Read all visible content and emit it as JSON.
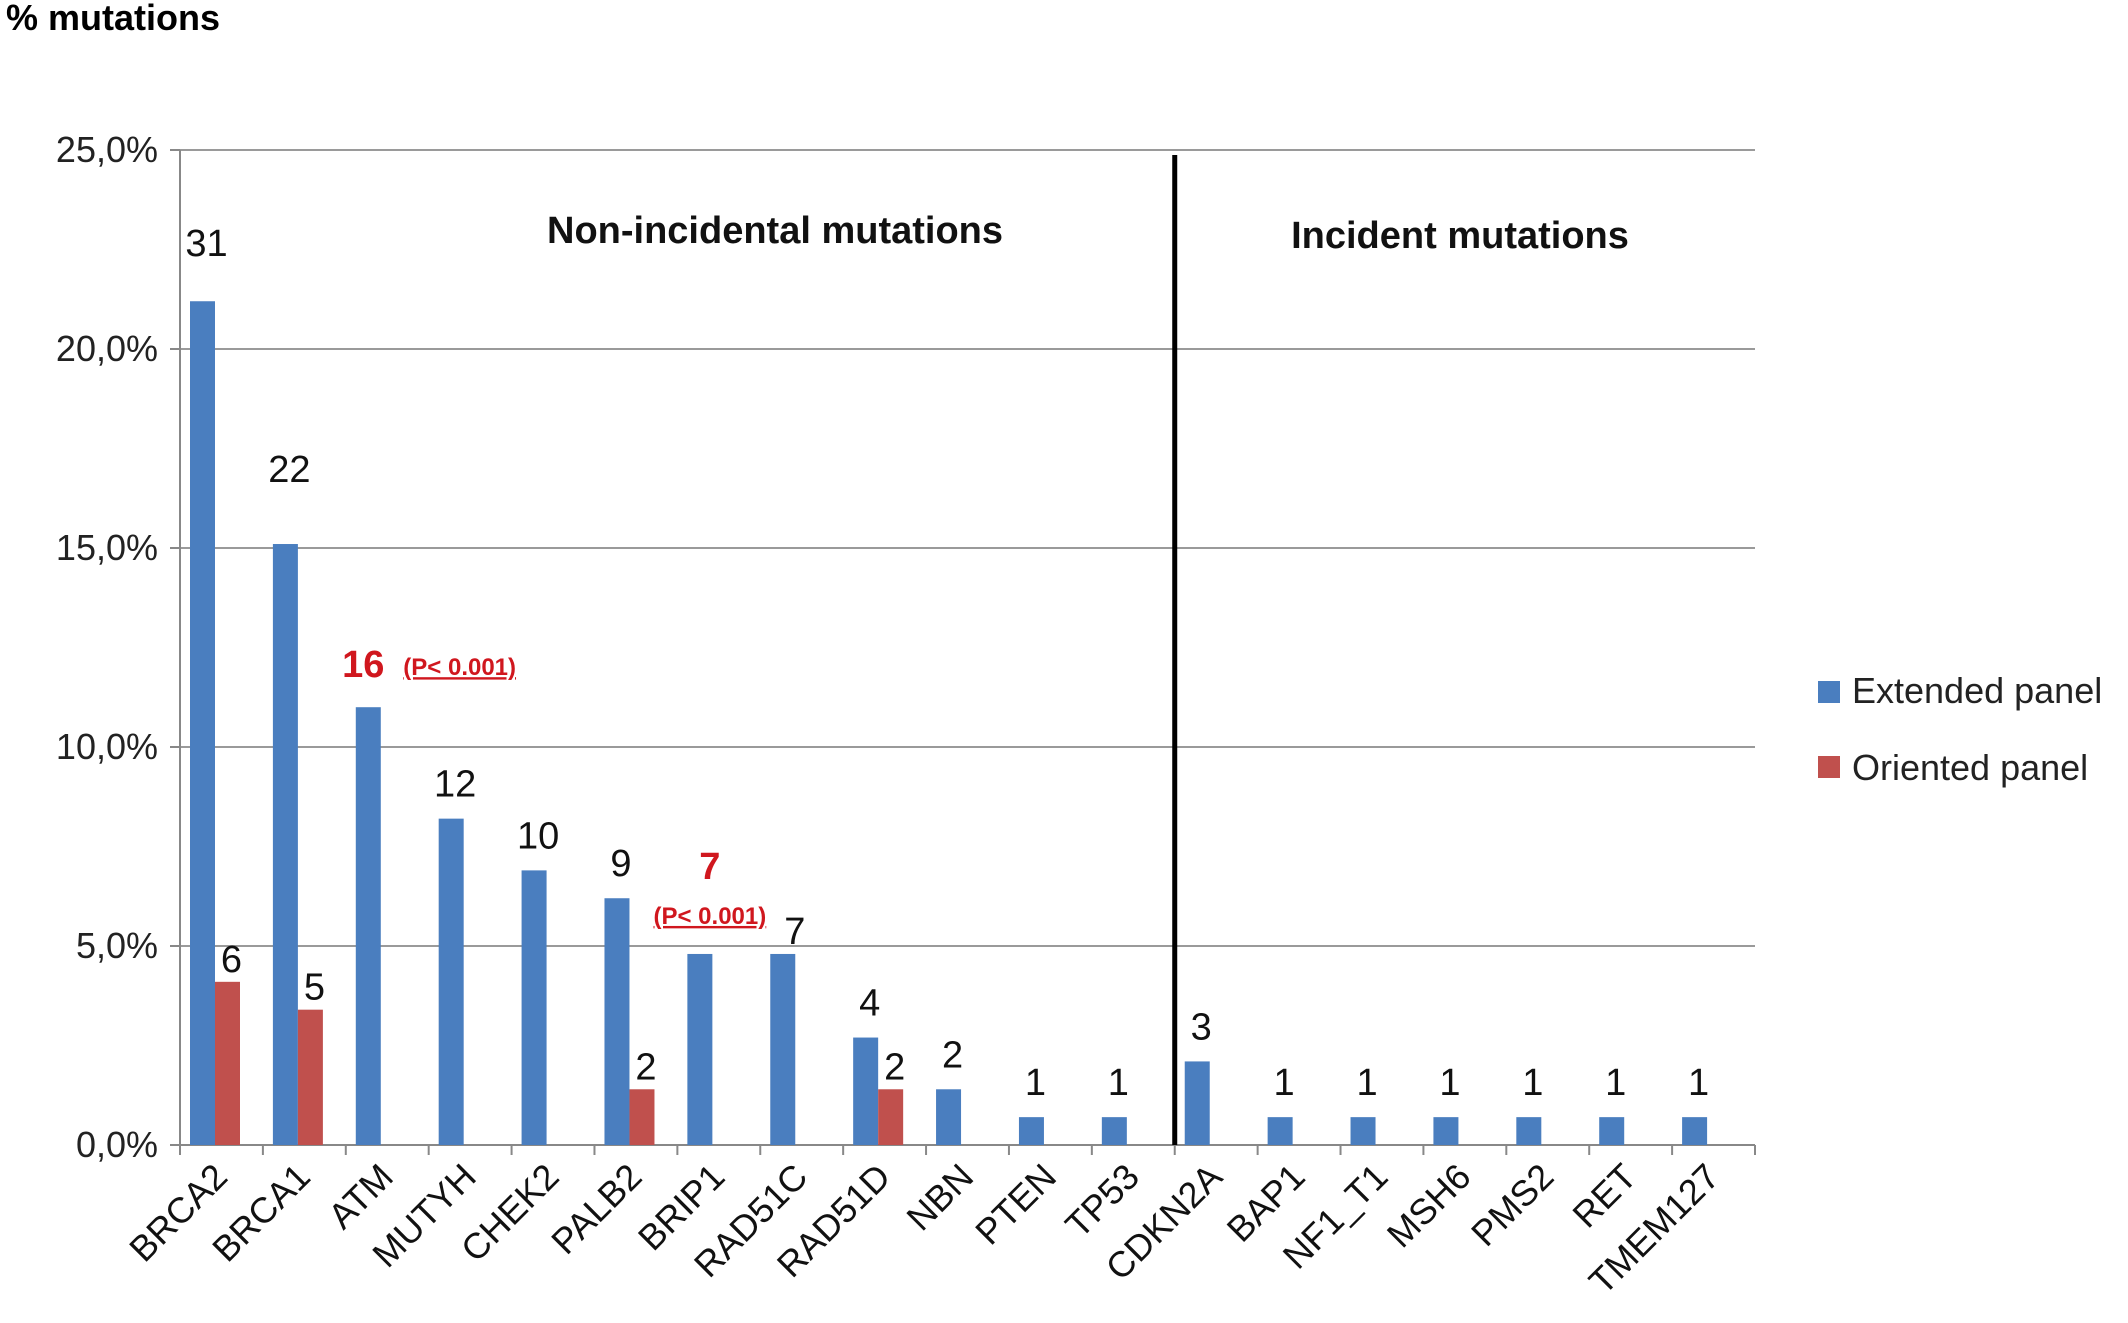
{
  "chart_data": {
    "type": "bar",
    "ylabel": "% mutations",
    "ylim": [
      0,
      25
    ],
    "yticks": [
      "0,0%",
      "5,0%",
      "10,0%",
      "15,0%",
      "20,0%",
      "25,0%"
    ],
    "ytick_values": [
      0,
      5,
      10,
      15,
      20,
      25
    ],
    "grid": true,
    "legend_position": "right",
    "categories": [
      "BRCA2",
      "BRCA1",
      "ATM",
      "MUTYH",
      "CHEK2",
      "PALB2",
      "BRIP1",
      "RAD51C",
      "RAD51D",
      "NBN",
      "PTEN",
      "TP53",
      "CDKN2A",
      "BAP1",
      "NF1_T1",
      "MSH6",
      "PMS2",
      "RET",
      "TMEM127"
    ],
    "series": [
      {
        "name": "Extended panel",
        "color": "#4a7ebf",
        "values": [
          21.2,
          15.1,
          11.0,
          8.2,
          6.9,
          6.2,
          4.8,
          4.8,
          2.7,
          1.4,
          0.7,
          0.7,
          2.1,
          0.7,
          0.7,
          0.7,
          0.7,
          0.7,
          0.7
        ],
        "labels": [
          "31",
          "22",
          "16",
          "12",
          "10",
          "9",
          "7",
          "7",
          "4",
          "2",
          "1",
          "1",
          "3",
          "1",
          "1",
          "1",
          "1",
          "1",
          "1"
        ]
      },
      {
        "name": "Oriented panel",
        "color": "#c0504d",
        "values": [
          4.1,
          3.4,
          0,
          0,
          0,
          1.4,
          0,
          0,
          1.4,
          0,
          0,
          0,
          0,
          0,
          0,
          0,
          0,
          0,
          0
        ],
        "labels": [
          "6",
          "5",
          "",
          "",
          "",
          "2",
          "",
          "",
          "2",
          "",
          "",
          "",
          "",
          "",
          "",
          "",
          "",
          "",
          ""
        ]
      }
    ],
    "annotations": {
      "atm_p": "(P< 0.001)",
      "brip1_p": "(P< 0.001)"
    },
    "sections": {
      "left": "Non-incidental mutations",
      "right": "Incident mutations"
    }
  }
}
